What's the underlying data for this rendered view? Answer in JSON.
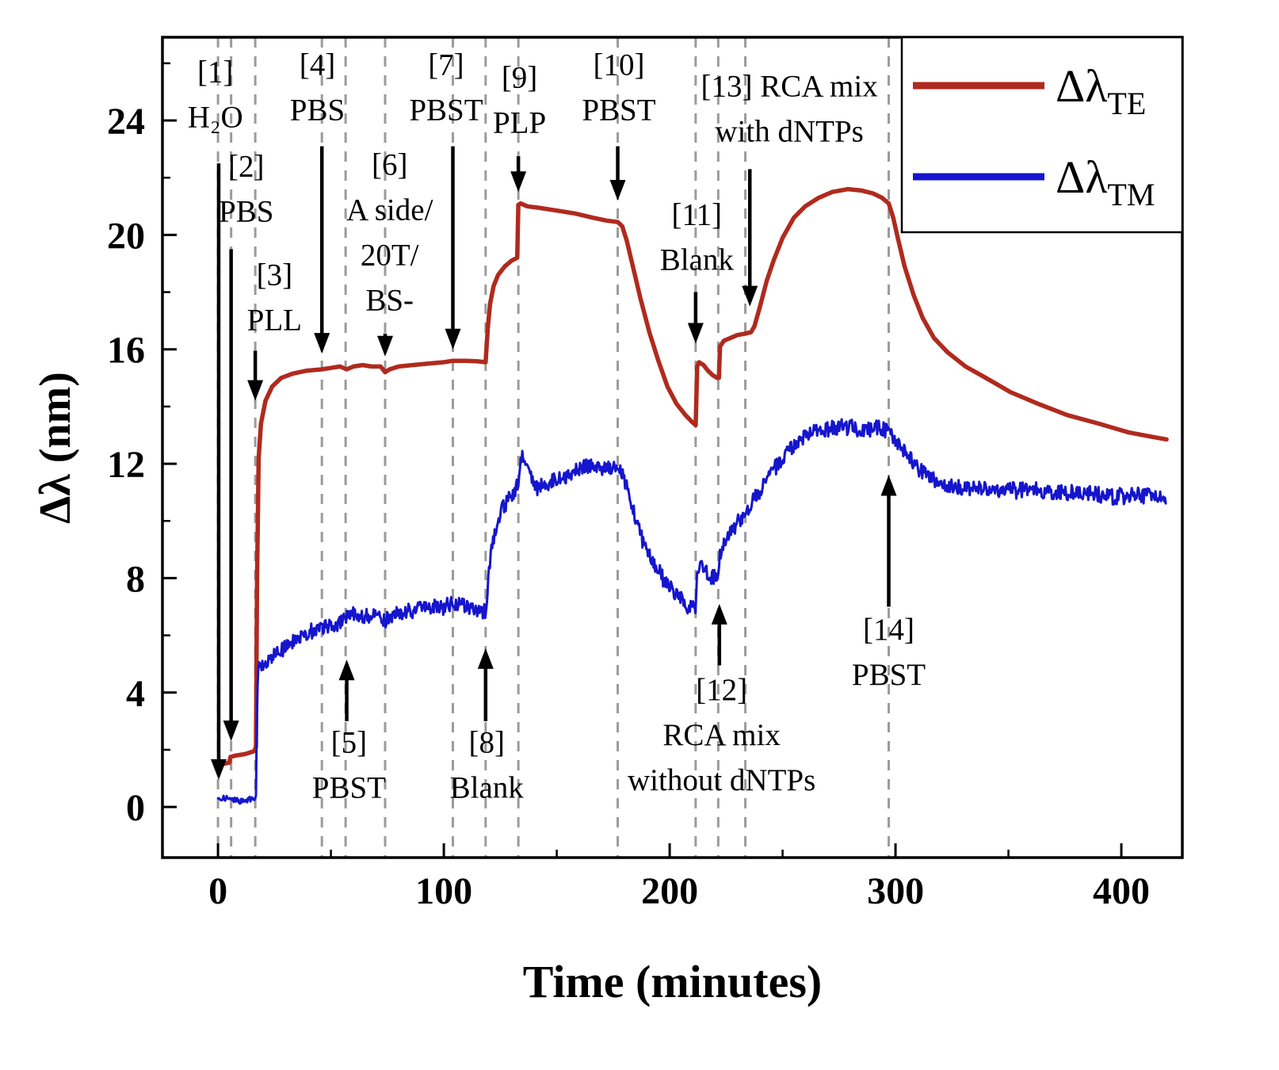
{
  "chart_data": {
    "type": "line",
    "title": "",
    "xlabel": "Time (minutes)",
    "ylabel": "Δλ (nm)",
    "xlim": [
      -24.6,
      427
    ],
    "ylim": [
      -1.77,
      26.91
    ],
    "xticks": [
      0,
      100,
      200,
      300,
      400
    ],
    "yticks": [
      0,
      4,
      8,
      12,
      16,
      20,
      24
    ],
    "x_minor_step": 50,
    "y_minor_step": 2,
    "grid": false,
    "legend": {
      "position": "top-right",
      "entries": [
        {
          "label_base": "Δλ",
          "label_sub": "TE",
          "color": "#b02a1e"
        },
        {
          "label_base": "Δλ",
          "label_sub": "TM",
          "color": "#1515cd"
        }
      ]
    },
    "event_lines": {
      "color": "#9b9b9b",
      "times": [
        0,
        5.8,
        16.5,
        46,
        56.5,
        74,
        104,
        118.5,
        133,
        177,
        211.5,
        221.5,
        233.5,
        297
      ]
    },
    "series": [
      {
        "name": "ΔλTE",
        "color": "#b02a1e",
        "width": 5.5,
        "noise_segments": [],
        "points": [
          [
            2,
            1.5
          ],
          [
            5,
            1.55
          ],
          [
            5.5,
            1.75
          ],
          [
            8,
            1.8
          ],
          [
            12,
            1.85
          ],
          [
            16,
            1.95
          ],
          [
            16.8,
            2.1
          ],
          [
            17.3,
            8.0
          ],
          [
            18,
            12.2
          ],
          [
            19,
            13.4
          ],
          [
            21,
            14.2
          ],
          [
            24,
            14.7
          ],
          [
            28,
            15.0
          ],
          [
            33,
            15.15
          ],
          [
            39,
            15.25
          ],
          [
            46,
            15.3
          ],
          [
            50,
            15.35
          ],
          [
            54,
            15.4
          ],
          [
            57,
            15.3
          ],
          [
            60,
            15.4
          ],
          [
            64,
            15.45
          ],
          [
            68,
            15.4
          ],
          [
            72,
            15.4
          ],
          [
            74,
            15.2
          ],
          [
            76,
            15.3
          ],
          [
            80,
            15.4
          ],
          [
            86,
            15.45
          ],
          [
            93,
            15.5
          ],
          [
            100,
            15.55
          ],
          [
            104,
            15.6
          ],
          [
            110,
            15.6
          ],
          [
            115,
            15.58
          ],
          [
            118.5,
            15.55
          ],
          [
            119.5,
            16.8
          ],
          [
            120.5,
            17.6
          ],
          [
            122,
            18.2
          ],
          [
            124,
            18.6
          ],
          [
            127,
            18.9
          ],
          [
            130,
            19.1
          ],
          [
            132.5,
            19.2
          ],
          [
            133,
            21.05
          ],
          [
            134,
            21.1
          ],
          [
            137,
            21.0
          ],
          [
            142,
            20.95
          ],
          [
            150,
            20.85
          ],
          [
            158,
            20.75
          ],
          [
            166,
            20.6
          ],
          [
            172,
            20.5
          ],
          [
            177,
            20.45
          ],
          [
            179,
            20.3
          ],
          [
            181,
            19.8
          ],
          [
            184,
            18.8
          ],
          [
            187,
            17.8
          ],
          [
            191,
            16.6
          ],
          [
            195,
            15.6
          ],
          [
            199,
            14.7
          ],
          [
            203,
            14.1
          ],
          [
            207,
            13.7
          ],
          [
            210,
            13.45
          ],
          [
            211.5,
            13.35
          ],
          [
            212.2,
            15.4
          ],
          [
            213,
            15.55
          ],
          [
            215,
            15.45
          ],
          [
            217,
            15.25
          ],
          [
            219,
            15.1
          ],
          [
            221,
            15.0
          ],
          [
            221.8,
            15.0
          ],
          [
            222.3,
            16.1
          ],
          [
            224,
            16.3
          ],
          [
            227,
            16.4
          ],
          [
            230,
            16.5
          ],
          [
            233.5,
            16.55
          ],
          [
            236,
            16.6
          ],
          [
            237.5,
            16.8
          ],
          [
            240,
            17.5
          ],
          [
            243,
            18.4
          ],
          [
            246,
            19.1
          ],
          [
            250,
            19.9
          ],
          [
            255,
            20.6
          ],
          [
            260,
            21.0
          ],
          [
            266,
            21.3
          ],
          [
            272,
            21.5
          ],
          [
            279,
            21.6
          ],
          [
            285,
            21.55
          ],
          [
            290,
            21.45
          ],
          [
            294,
            21.3
          ],
          [
            297,
            21.1
          ],
          [
            299,
            20.6
          ],
          [
            301,
            19.9
          ],
          [
            304,
            18.9
          ],
          [
            308,
            17.9
          ],
          [
            312,
            17.1
          ],
          [
            317,
            16.4
          ],
          [
            323,
            15.9
          ],
          [
            331,
            15.4
          ],
          [
            340,
            15.0
          ],
          [
            351,
            14.5
          ],
          [
            363,
            14.1
          ],
          [
            376,
            13.7
          ],
          [
            390,
            13.4
          ],
          [
            403,
            13.1
          ],
          [
            413,
            12.95
          ],
          [
            420,
            12.85
          ]
        ]
      },
      {
        "name": "ΔλTM",
        "color": "#1515cd",
        "width": 3,
        "noise_segments": [
          {
            "until": 16.9,
            "amp": 0.09
          },
          {
            "until": 430,
            "amp": 0.27
          }
        ],
        "points": [
          [
            0,
            0.3
          ],
          [
            4,
            0.35
          ],
          [
            8,
            0.3
          ],
          [
            12,
            0.32
          ],
          [
            16,
            0.35
          ],
          [
            16.8,
            0.4
          ],
          [
            17.2,
            3.5
          ],
          [
            17.6,
            4.8
          ],
          [
            19,
            5.05
          ],
          [
            22,
            5.25
          ],
          [
            26,
            5.5
          ],
          [
            31,
            5.75
          ],
          [
            37,
            6.0
          ],
          [
            43,
            6.25
          ],
          [
            47,
            6.35
          ],
          [
            52,
            6.5
          ],
          [
            57,
            6.6
          ],
          [
            60,
            6.75
          ],
          [
            63,
            6.7
          ],
          [
            67,
            6.6
          ],
          [
            71,
            6.6
          ],
          [
            74,
            6.6
          ],
          [
            78,
            6.7
          ],
          [
            84,
            6.75
          ],
          [
            90,
            6.85
          ],
          [
            96,
            6.95
          ],
          [
            101,
            7.0
          ],
          [
            105,
            7.0
          ],
          [
            110,
            6.9
          ],
          [
            114,
            6.8
          ],
          [
            118.5,
            6.7
          ],
          [
            119.5,
            7.6
          ],
          [
            121,
            8.8
          ],
          [
            123,
            9.7
          ],
          [
            125,
            10.2
          ],
          [
            128,
            10.6
          ],
          [
            131,
            10.9
          ],
          [
            133,
            11.3
          ],
          [
            134,
            12.1
          ],
          [
            135.5,
            12.25
          ],
          [
            137,
            11.9
          ],
          [
            139,
            11.4
          ],
          [
            141,
            11.05
          ],
          [
            144,
            11.15
          ],
          [
            148,
            11.4
          ],
          [
            153,
            11.6
          ],
          [
            158,
            11.75
          ],
          [
            164,
            11.8
          ],
          [
            169,
            11.75
          ],
          [
            174,
            11.8
          ],
          [
            178,
            11.8
          ],
          [
            180,
            11.4
          ],
          [
            183,
            10.5
          ],
          [
            186,
            9.7
          ],
          [
            190,
            8.9
          ],
          [
            194,
            8.3
          ],
          [
            198,
            7.8
          ],
          [
            202,
            7.4
          ],
          [
            206,
            7.1
          ],
          [
            209,
            6.95
          ],
          [
            211.5,
            6.9
          ],
          [
            212.2,
            8.2
          ],
          [
            214,
            8.45
          ],
          [
            216,
            8.3
          ],
          [
            218,
            8.1
          ],
          [
            220,
            8.0
          ],
          [
            221.5,
            8.05
          ],
          [
            222.5,
            8.8
          ],
          [
            225,
            9.2
          ],
          [
            228,
            9.6
          ],
          [
            231,
            9.95
          ],
          [
            234,
            10.3
          ],
          [
            237,
            10.6
          ],
          [
            240,
            10.95
          ],
          [
            244,
            11.4
          ],
          [
            248,
            11.9
          ],
          [
            253,
            12.4
          ],
          [
            258,
            12.75
          ],
          [
            263,
            13.0
          ],
          [
            269,
            13.15
          ],
          [
            275,
            13.25
          ],
          [
            281,
            13.3
          ],
          [
            287,
            13.25
          ],
          [
            292,
            13.2
          ],
          [
            297,
            13.05
          ],
          [
            300,
            12.8
          ],
          [
            304,
            12.4
          ],
          [
            308,
            12.0
          ],
          [
            313,
            11.7
          ],
          [
            319,
            11.4
          ],
          [
            326,
            11.2
          ],
          [
            335,
            11.1
          ],
          [
            346,
            11.05
          ],
          [
            358,
            11.0
          ],
          [
            370,
            10.95
          ],
          [
            382,
            10.9
          ],
          [
            394,
            11.0
          ],
          [
            404,
            10.85
          ],
          [
            413,
            10.8
          ],
          [
            420,
            10.8
          ]
        ]
      }
    ],
    "annotations": [
      {
        "lines": [
          "[1]",
          "H₂O"
        ],
        "t_label": -1.2,
        "y_label": 25.35,
        "arrow": {
          "t": 0.3,
          "y_from": 22.5,
          "y_to": 0.95
        }
      },
      {
        "lines": [
          "[2]",
          "PBS"
        ],
        "t_label": 12.5,
        "y_label": 22.05,
        "arrow": {
          "t": 5.8,
          "y_from": 19.5,
          "y_to": 2.3
        }
      },
      {
        "lines": [
          "[3]",
          "PLL"
        ],
        "t_label": 25,
        "y_label": 18.25,
        "arrow": {
          "t": 16.5,
          "y_from": 15.95,
          "y_to": 14.2
        }
      },
      {
        "lines": [
          "[4]",
          "PBS"
        ],
        "t_label": 44,
        "y_label": 25.6,
        "arrow": {
          "t": 46,
          "y_from": 23.1,
          "y_to": 15.85
        }
      },
      {
        "lines": [
          "[5]",
          "PBST"
        ],
        "t_label": 58,
        "y_label": 1.9,
        "arrow": {
          "t": 57,
          "y_from": 3.0,
          "y_to": 5.15
        }
      },
      {
        "lines": [
          "[6]",
          "A side/",
          "20T/",
          "BS-"
        ],
        "t_label": 76,
        "y_label": 22.1,
        "arrow": {
          "t": 74,
          "y_from": 16.55,
          "y_to": 15.75
        }
      },
      {
        "lines": [
          "[7]",
          "PBST"
        ],
        "t_label": 101,
        "y_label": 25.6,
        "arrow": {
          "t": 104,
          "y_from": 23.1,
          "y_to": 16.0
        }
      },
      {
        "lines": [
          "[8]",
          "Blank"
        ],
        "t_label": 119,
        "y_label": 1.9,
        "arrow": {
          "t": 118.5,
          "y_from": 3.0,
          "y_to": 5.55
        }
      },
      {
        "lines": [
          "[9]",
          "PLP"
        ],
        "t_label": 133.5,
        "y_label": 25.15,
        "arrow": {
          "t": 133,
          "y_from": 22.75,
          "y_to": 21.5
        }
      },
      {
        "lines": [
          "[10]",
          "PBST"
        ],
        "t_label": 177.5,
        "y_label": 25.6,
        "arrow": {
          "t": 177,
          "y_from": 23.1,
          "y_to": 21.2
        }
      },
      {
        "lines": [
          "[11]",
          "Blank"
        ],
        "t_label": 212,
        "y_label": 20.35,
        "arrow": {
          "t": 211.5,
          "y_from": 18.0,
          "y_to": 16.2
        }
      },
      {
        "lines": [
          "[12]",
          "RCA mix",
          "without dNTPs"
        ],
        "t_label": 223,
        "y_label": 3.75,
        "arrow": {
          "t": 222,
          "y_from": 4.95,
          "y_to": 7.1
        }
      },
      {
        "lines": [
          "[13] RCA mix",
          "with dNTPs"
        ],
        "t_label": 253,
        "y_label": 24.85,
        "arrow": {
          "t": 235.5,
          "y_from": 22.3,
          "y_to": 17.5
        }
      },
      {
        "lines": [
          "[14]",
          "PBST"
        ],
        "t_label": 297,
        "y_label": 5.85,
        "arrow": {
          "t": 297,
          "y_from": 7.0,
          "y_to": 11.6
        }
      }
    ]
  }
}
